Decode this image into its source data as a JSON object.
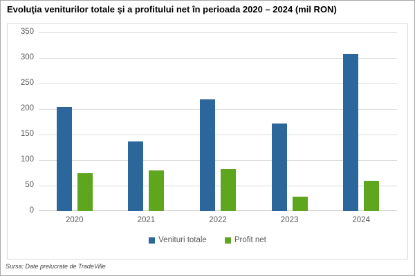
{
  "source_note": "Sursa: Date prelucrate de TradeVille",
  "colors": {
    "venituri_totale": "#2C679C",
    "profit_net": "#5FA61F",
    "gridline": "#D9D9D9",
    "axis_text": "#595959"
  },
  "chart_data": {
    "type": "bar",
    "title": "Evoluţia veniturilor totale şi a profitului net în perioada 2020 – 2024 (mil RON)",
    "categories": [
      "2020",
      "2021",
      "2022",
      "2023",
      "2024"
    ],
    "series": [
      {
        "name": "Venituri totale",
        "color": "#2C679C",
        "values": [
          204,
          137,
          219,
          171,
          308
        ]
      },
      {
        "name": "Profit net",
        "color": "#5FA61F",
        "values": [
          75,
          80,
          83,
          29,
          60
        ]
      }
    ],
    "ylabel": "",
    "xlabel": "",
    "ylim": [
      0,
      350
    ],
    "ytick_interval": 50,
    "grid": true,
    "legend_position": "bottom"
  }
}
